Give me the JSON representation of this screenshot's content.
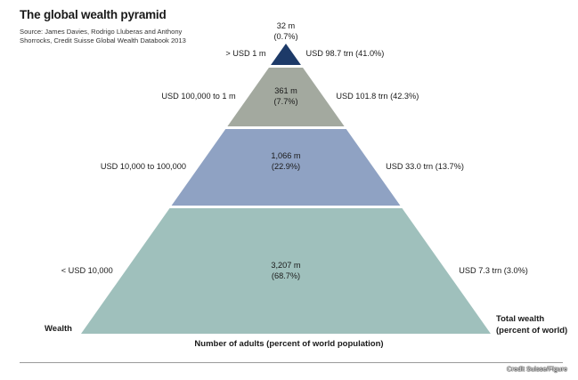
{
  "title": "The global wealth pyramid",
  "source": "Source: James Davies, Rodrigo Lluberas and Anthony Shorrocks, Credit Suisse Global Wealth Databook 2013",
  "credit": "Credit Suisse/Figure",
  "chart_data": {
    "type": "pyramid",
    "title": "The global wealth pyramid",
    "xlabel": "Number of adults (percent of world population)",
    "left_axis_label": "Wealth",
    "right_axis_label": "Total wealth (percent of world)",
    "tiers": [
      {
        "wealth_band": "> USD 1 m",
        "adults": "32 m",
        "adults_pct": "(0.7%)",
        "total_wealth": "USD 98.7 trn (41.0%)",
        "adults_m": 32,
        "adults_share": 0.7,
        "wealth_trn": 98.7,
        "wealth_share": 41.0,
        "color": "#1d3a68"
      },
      {
        "wealth_band": "USD 100,000 to 1 m",
        "adults": "361 m",
        "adults_pct": "(7.7%)",
        "total_wealth": "USD 101.8 trn (42.3%)",
        "adults_m": 361,
        "adults_share": 7.7,
        "wealth_trn": 101.8,
        "wealth_share": 42.3,
        "color": "#a3a99f"
      },
      {
        "wealth_band": "USD 10,000 to 100,000",
        "adults": "1,066 m",
        "adults_pct": "(22.9%)",
        "total_wealth": "USD 33.0 trn (13.7%)",
        "adults_m": 1066,
        "adults_share": 22.9,
        "wealth_trn": 33.0,
        "wealth_share": 13.7,
        "color": "#8fa2c3"
      },
      {
        "wealth_band": "< USD 10,000",
        "adults": "3,207 m",
        "adults_pct": "(68.7%)",
        "total_wealth": "USD 7.3 trn (3.0%)",
        "adults_m": 3207,
        "adults_share": 68.7,
        "wealth_trn": 7.3,
        "wealth_share": 3.0,
        "color": "#9fc0bc"
      }
    ]
  }
}
